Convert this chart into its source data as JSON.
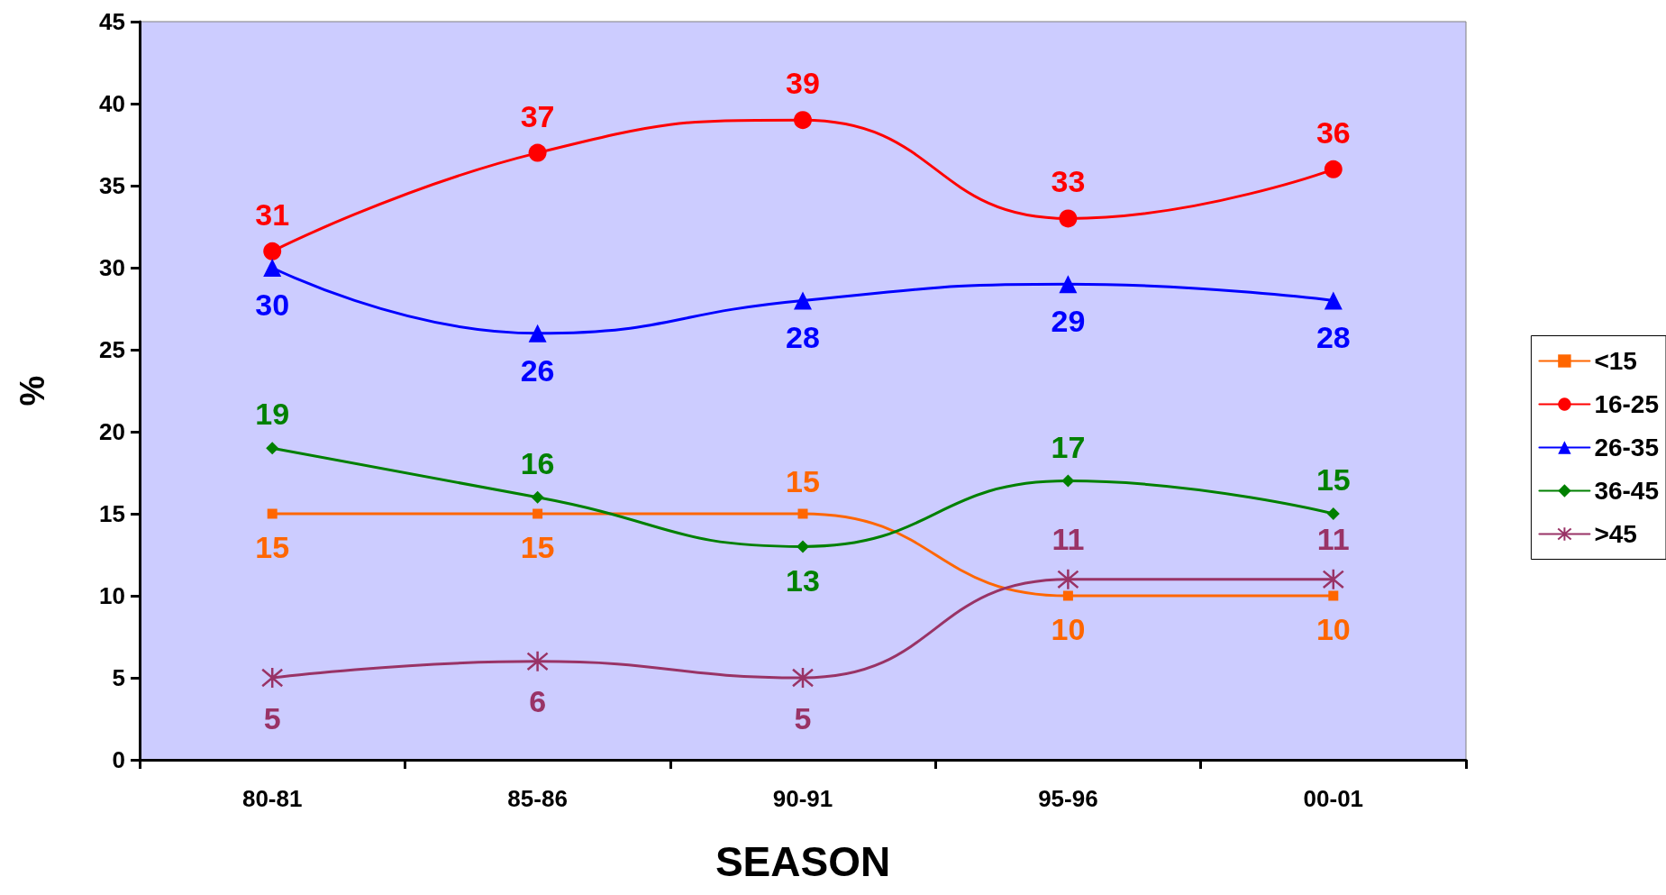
{
  "chart_data": {
    "type": "line",
    "xlabel": "SEASON",
    "ylabel": "%",
    "categories": [
      "80-81",
      "85-86",
      "90-91",
      "95-96",
      "00-01"
    ],
    "series": [
      {
        "name": "<15",
        "color": "#ff6600",
        "marker": "square",
        "values": [
          15,
          15,
          15,
          10,
          10
        ]
      },
      {
        "name": "16-25",
        "color": "#ff0000",
        "marker": "circle",
        "values": [
          31,
          37,
          39,
          33,
          36
        ]
      },
      {
        "name": "26-35",
        "color": "#0000ff",
        "marker": "triangle",
        "values": [
          30,
          26,
          28,
          29,
          28
        ]
      },
      {
        "name": "36-45",
        "color": "#008000",
        "marker": "diamond",
        "values": [
          19,
          16,
          13,
          17,
          15
        ]
      },
      {
        "name": ">45",
        "color": "#993366",
        "marker": "cross",
        "values": [
          5,
          6,
          5,
          11,
          11
        ]
      }
    ],
    "ylim": [
      0,
      45
    ],
    "yticks": [
      0,
      5,
      10,
      15,
      20,
      25,
      30,
      35,
      40,
      45
    ],
    "grid": false,
    "legend": "right",
    "data_labels": true,
    "line_style": "solid"
  }
}
